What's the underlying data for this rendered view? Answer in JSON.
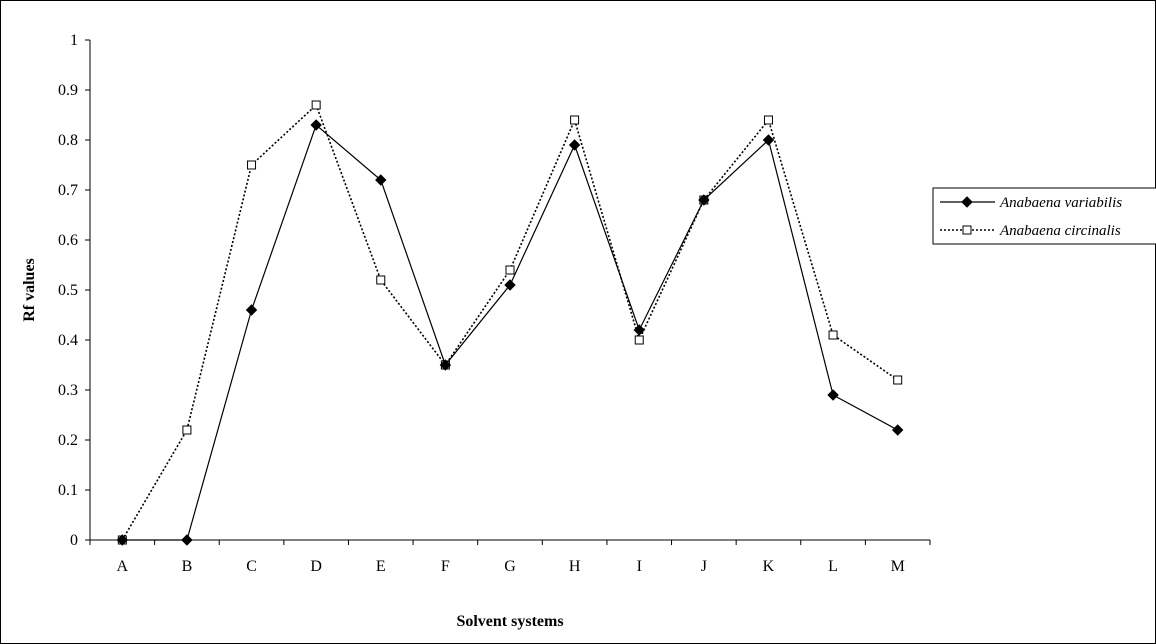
{
  "chart_data": {
    "type": "line",
    "title": "",
    "xlabel": "Solvent systems",
    "ylabel": "Rf values",
    "categories": [
      "A",
      "B",
      "C",
      "D",
      "E",
      "F",
      "G",
      "H",
      "I",
      "J",
      "K",
      "L",
      "M"
    ],
    "ylim": [
      0,
      1
    ],
    "yticks": [
      "0",
      "0.1",
      "0.2",
      "0.3",
      "0.4",
      "0.5",
      "0.6",
      "0.7",
      "0.8",
      "0.9",
      "1"
    ],
    "grid": false,
    "legend_position": "right",
    "series": [
      {
        "name": "Anabaena variabilis",
        "style": "solid",
        "marker": "filled-diamond",
        "color": "#000000",
        "values": [
          0,
          0,
          0.46,
          0.83,
          0.72,
          0.35,
          0.51,
          0.79,
          0.42,
          0.68,
          0.8,
          0.29,
          0.22
        ]
      },
      {
        "name": "Anabaena circinalis",
        "style": "dotted",
        "marker": "open-square",
        "color": "#000000",
        "values": [
          0,
          0.22,
          0.75,
          0.87,
          0.52,
          0.35,
          0.54,
          0.84,
          0.4,
          0.68,
          0.84,
          0.41,
          0.32
        ]
      }
    ]
  }
}
